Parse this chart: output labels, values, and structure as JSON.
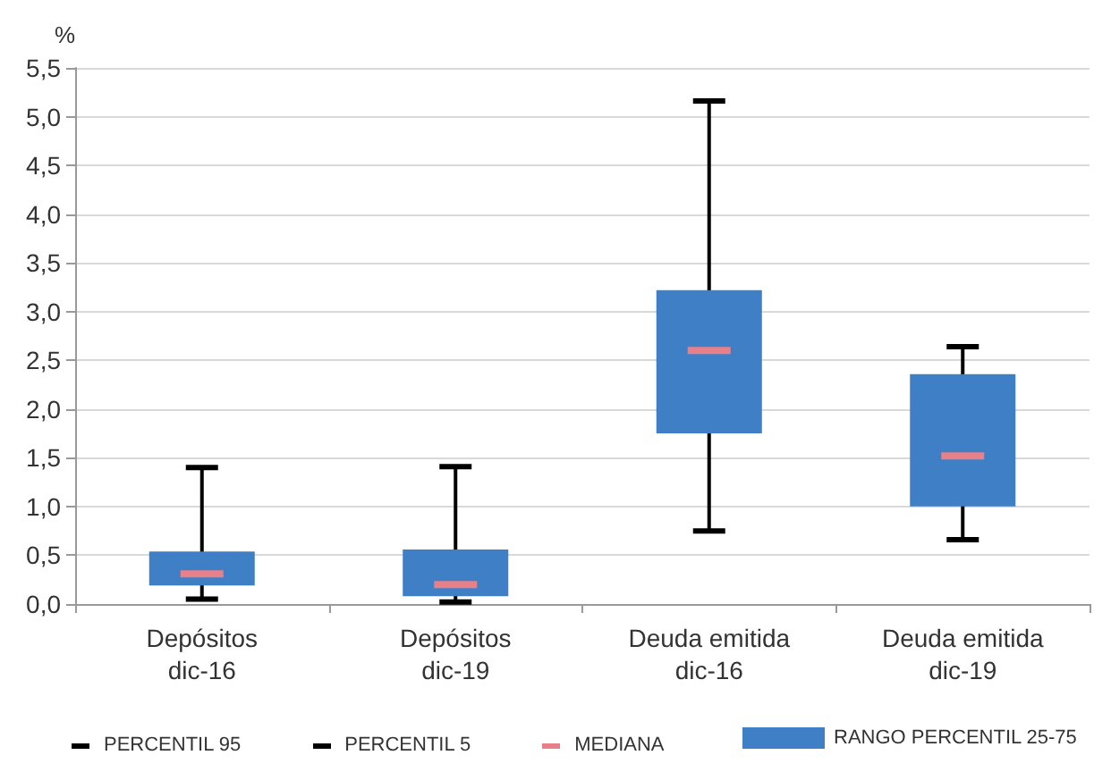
{
  "chart_data": {
    "type": "box",
    "ylabel": "%",
    "categories": [
      "Depósitos\ndic-16",
      "Depósitos\ndic-19",
      "Deuda emitida\ndic-16",
      "Deuda emitida\ndic-19"
    ],
    "ylim": [
      0,
      5.5
    ],
    "yticks": [
      {
        "value": 0,
        "label": "0,0"
      },
      {
        "value": 0.5,
        "label": "0,5"
      },
      {
        "value": 1,
        "label": "1,0"
      },
      {
        "value": 1.5,
        "label": "1,5"
      },
      {
        "value": 2,
        "label": "2,0"
      },
      {
        "value": 2.5,
        "label": "2,5"
      },
      {
        "value": 3,
        "label": "3,0"
      },
      {
        "value": 3.5,
        "label": "3,5"
      },
      {
        "value": 4,
        "label": "4,0"
      },
      {
        "value": 4.5,
        "label": "4,5"
      },
      {
        "value": 5,
        "label": "5,0"
      },
      {
        "value": 5.5,
        "label": "5,5"
      }
    ],
    "grid": "y",
    "legend": "bottom",
    "annotations": [
      "PERCENTIL 95",
      "PERCENTIL 5",
      "MEDIANA"
    ],
    "series": [
      {
        "name": "RANGO PERCENTIL 25-75",
        "color": "#3f7fc6",
        "boxes": [
          {
            "low": 0.05,
            "q1": 0.2,
            "median": 0.31,
            "q3": 0.53,
            "high": 1.4
          },
          {
            "low": 0.02,
            "q1": 0.09,
            "median": 0.2,
            "q3": 0.55,
            "high": 1.41
          },
          {
            "low": 0.75,
            "q1": 1.76,
            "median": 2.6,
            "q3": 3.21,
            "high": 5.16
          },
          {
            "low": 0.66,
            "q1": 1.01,
            "median": 1.52,
            "q3": 2.35,
            "high": 2.64
          }
        ]
      }
    ]
  }
}
